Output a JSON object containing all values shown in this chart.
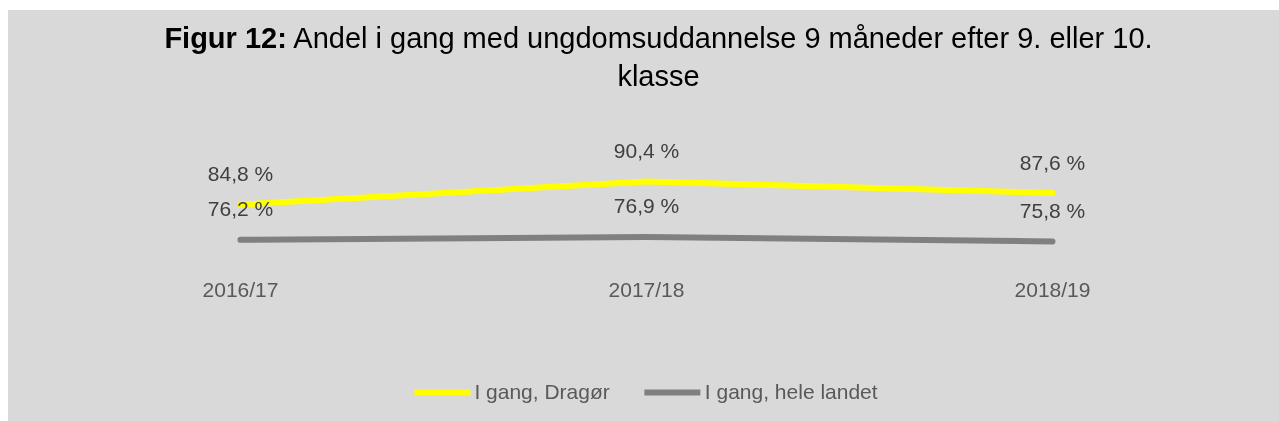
{
  "chart_data": {
    "type": "line",
    "title": "Figur 12: Andel i gang med ungdomsuddannelse 9 måneder efter 9. eller 10. klasse",
    "categories": [
      "2016/17",
      "2017/18",
      "2018/19"
    ],
    "series": [
      {
        "name": "I gang, Dragør",
        "color": "#ffff00",
        "values": [
          84.8,
          90.4,
          87.6
        ],
        "value_labels": [
          "84,8 %",
          "90,4 %",
          "87,6 %"
        ]
      },
      {
        "name": "I gang, hele landet",
        "color": "#808080",
        "values": [
          76.2,
          76.9,
          75.8
        ],
        "value_labels": [
          "76,2 %",
          "76,9 %",
          "75,8 %"
        ]
      }
    ],
    "legend": "bottom",
    "grid": false,
    "tick_labels": "x",
    "line_style": "solid"
  }
}
